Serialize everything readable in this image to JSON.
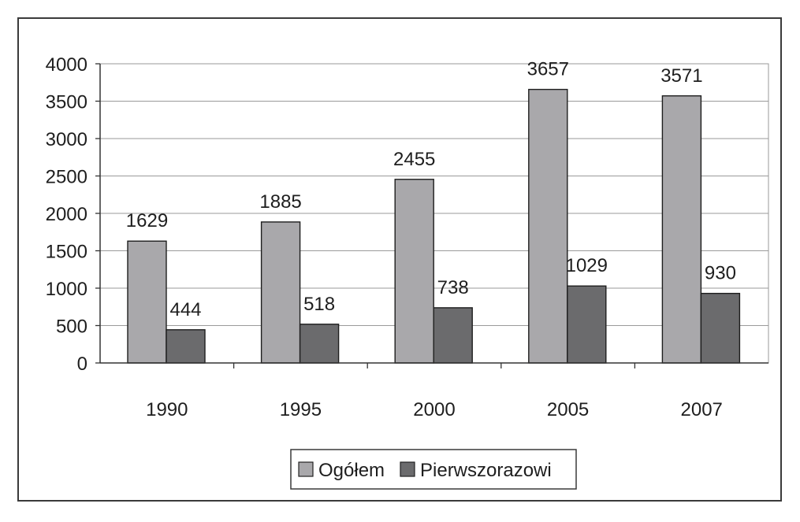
{
  "chart_data": {
    "type": "bar",
    "categories": [
      "1990",
      "1995",
      "2000",
      "2005",
      "2007"
    ],
    "series": [
      {
        "name": "Ogółem",
        "values": [
          1629,
          1885,
          2455,
          3657,
          3571
        ],
        "color": "#a9a8ab"
      },
      {
        "name": "Pierwszorazowi",
        "values": [
          444,
          518,
          738,
          1029,
          930
        ],
        "color": "#6b6b6d"
      }
    ],
    "ylim": [
      0,
      4000
    ],
    "yticks": [
      0,
      500,
      1000,
      1500,
      2000,
      2500,
      3000,
      3500,
      4000
    ],
    "grid": true,
    "legend_position": "bottom",
    "data_labels": true,
    "colors": {
      "plot_background": "#ffffff",
      "gridline": "#9a9a9a",
      "frame": "#3a3a3a"
    }
  }
}
